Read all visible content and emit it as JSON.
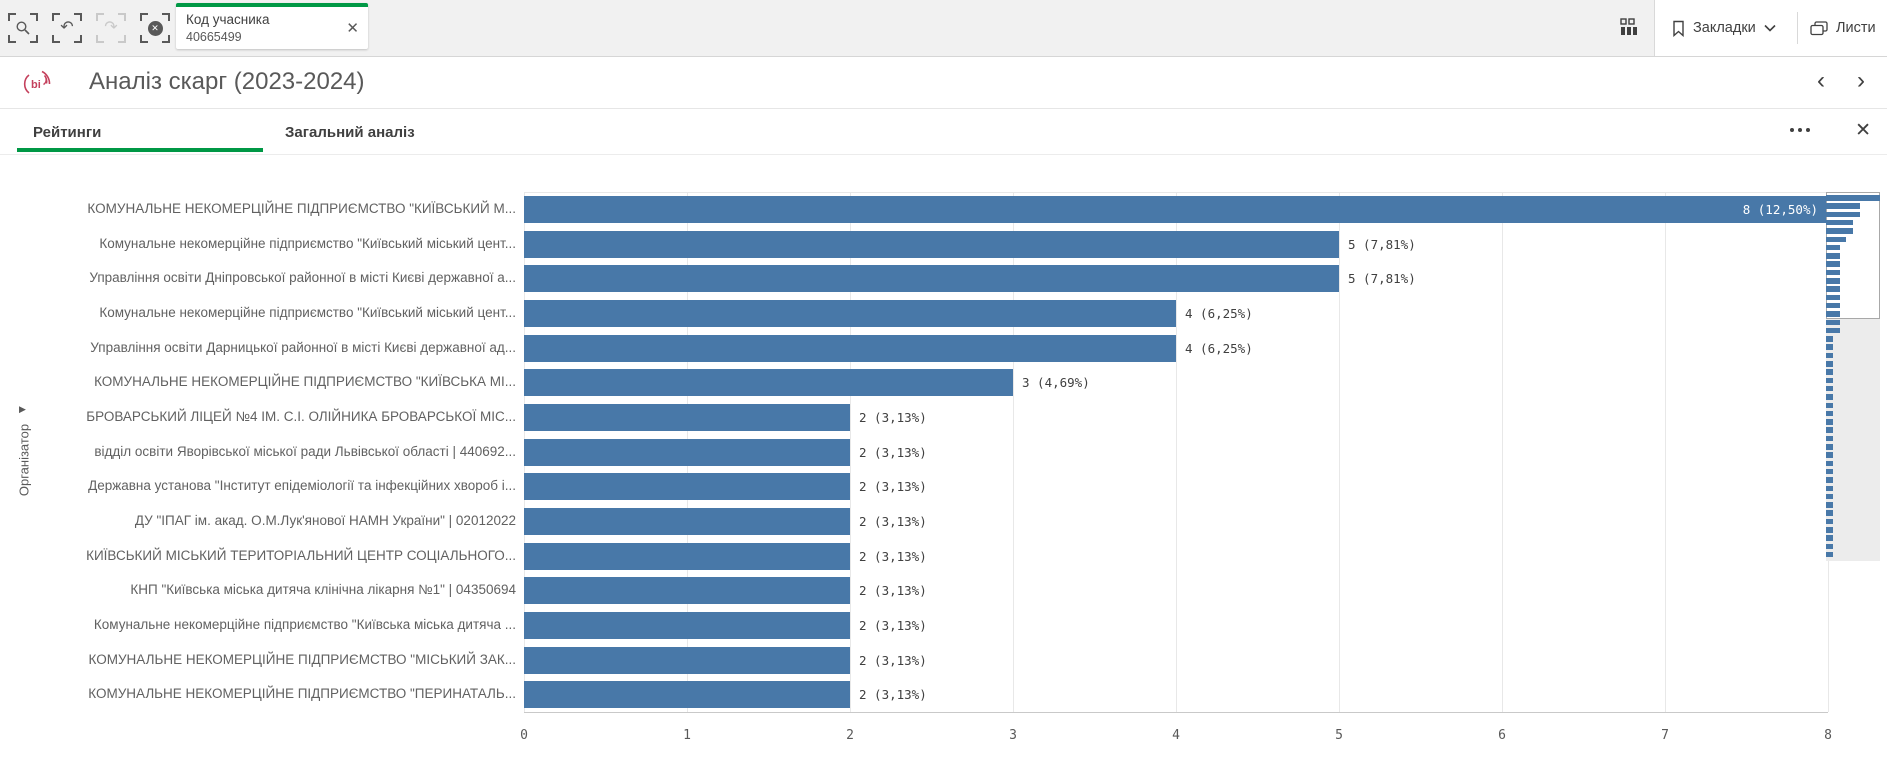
{
  "toolbar": {
    "filter_chip": {
      "field": "Код учасника",
      "value": "40665499"
    },
    "bookmarks_label": "Закладки",
    "sheets_label": "Листи"
  },
  "titlebar": {
    "title": "Аналіз скарг (2023-2024)"
  },
  "tabs": [
    {
      "label": "Рейтинги"
    },
    {
      "label": "Загальний аналіз"
    }
  ],
  "active_tab": "Рейтинги",
  "chart_data": {
    "type": "bar",
    "orientation": "horizontal",
    "ylabel": "Організатор",
    "xlabel": "",
    "xlim": [
      0,
      8
    ],
    "x_ticks": [
      0,
      1,
      2,
      3,
      4,
      5,
      6,
      7,
      8
    ],
    "grid": true,
    "bar_color": "#4878a8",
    "categories": [
      "КОМУНАЛЬНЕ НЕКОМЕРЦІЙНЕ ПІДПРИЄМСТВО \"КИЇВСЬКИЙ М...",
      "Комунальне некомерційне підприємство \"Київський міський цент...",
      "Управління освіти Дніпровської районної в місті Києві державної а...",
      "Комунальне некомерційне підприємство \"Київський міський цент...",
      "Управління освіти Дарницької районної в місті Києві державної ад...",
      "КОМУНАЛЬНЕ НЕКОМЕРЦІЙНЕ ПІДПРИЄМСТВО \"КИЇВСЬКА МІ...",
      "БРОВАРСЬКИЙ ЛІЦЕЙ №4 ІМ. С.І. ОЛІЙНИКА БРОВАРСЬКОЇ МІС...",
      "відділ освіти Яворівської міської ради Львівської області | 440692...",
      "Державна установа \"Інститут епідеміології та інфекційних хвороб і...",
      "ДУ \"ІПАГ ім. акад. О.М.Лук'янової НАМН України\" | 02012022",
      "КИЇВСЬКИЙ МІСЬКИЙ ТЕРИТОРІАЛЬНИЙ ЦЕНТР СОЦІАЛЬНОГО...",
      "КНП \"Київська міська дитяча клінічна лікарня №1\" | 04350694",
      "Комунальне некомерційне підприємство \"Київська міська дитяча ...",
      "КОМУНАЛЬНЕ НЕКОМЕРЦІЙНЕ ПІДПРИЄМСТВО \"МІСЬКИЙ ЗАК...",
      "КОМУНАЛЬНЕ НЕКОМЕРЦІЙНЕ ПІДПРИЄМСТВО \"ПЕРИНАТАЛЬ..."
    ],
    "values": [
      8,
      5,
      5,
      4,
      4,
      3,
      2,
      2,
      2,
      2,
      2,
      2,
      2,
      2,
      2
    ],
    "value_labels": [
      "8 (12,50%)",
      "5 (7,81%)",
      "5 (7,81%)",
      "4 (6,25%)",
      "4 (6,25%)",
      "3 (4,69%)",
      "2 (3,13%)",
      "2 (3,13%)",
      "2 (3,13%)",
      "2 (3,13%)",
      "2 (3,13%)",
      "2 (3,13%)",
      "2 (3,13%)",
      "2 (3,13%)",
      "2 (3,13%)"
    ],
    "minimap": {
      "viewport_rows": 15,
      "values": [
        8,
        5,
        5,
        4,
        4,
        3,
        2,
        2,
        2,
        2,
        2,
        2,
        2,
        2,
        2,
        2,
        2,
        1,
        1,
        1,
        1,
        1,
        1,
        1,
        1,
        1,
        1,
        1,
        1,
        1,
        1,
        1,
        1,
        1,
        1,
        1,
        1,
        1,
        1,
        1,
        1,
        1,
        1,
        1
      ]
    }
  }
}
